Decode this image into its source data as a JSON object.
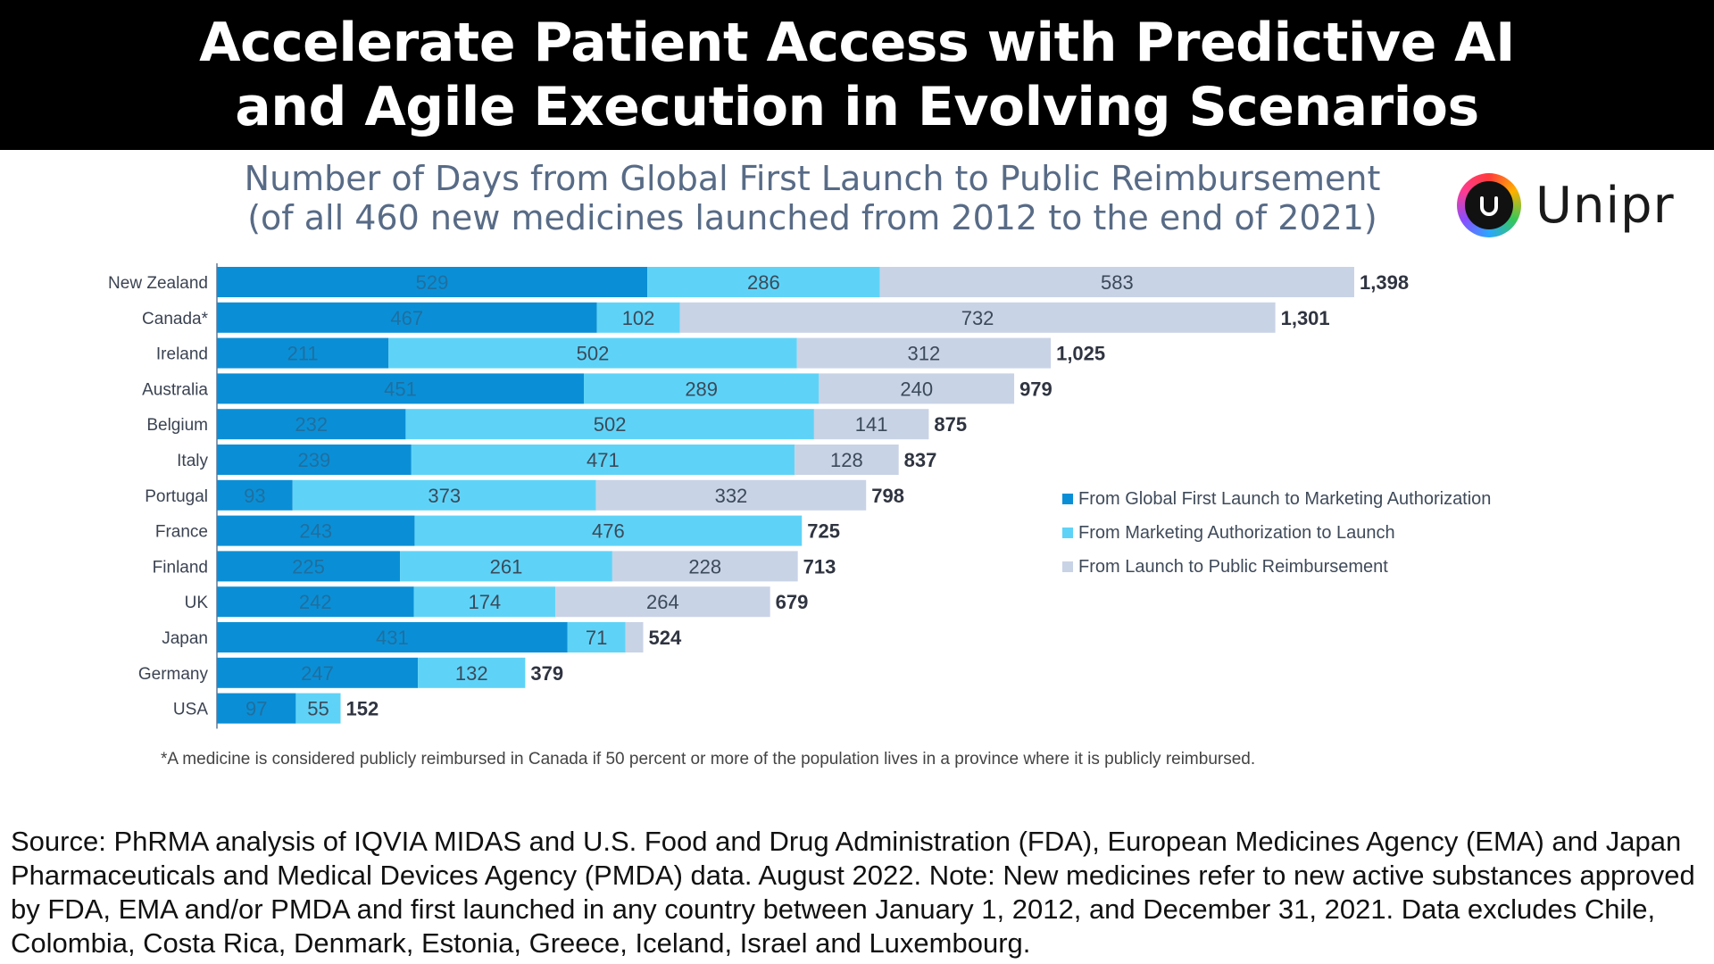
{
  "banner": {
    "line1": "Accelerate Patient Access with Predictive AI",
    "line2": "and Agile Execution in Evolving Scenarios"
  },
  "logo": {
    "text": "Unipr",
    "icon": "unipr-logo-icon"
  },
  "colors": {
    "series1": "#0a8fd6",
    "series2": "#5fd3f7",
    "series3": "#c9d3e6",
    "total_label": "#2f3440",
    "bar_label_dark": "#1f6fa0",
    "bar_label": "#3b4a5a"
  },
  "chart_data": {
    "type": "bar",
    "orientation": "horizontal",
    "stacked": true,
    "title": "Number of Days from Global First Launch to Public Reimbursement",
    "subtitle": "(of all 460 new medicines launched from 2012 to the end of 2021)",
    "categories": [
      "New Zealand",
      "Canada*",
      "Ireland",
      "Australia",
      "Belgium",
      "Italy",
      "Portugal",
      "France",
      "Finland",
      "UK",
      "Japan",
      "Germany",
      "USA"
    ],
    "series": [
      {
        "name": "From Global First Launch to Marketing Authorization",
        "values": [
          529,
          467,
          211,
          451,
          232,
          239,
          93,
          243,
          225,
          242,
          431,
          247,
          97
        ]
      },
      {
        "name": "From Marketing Authorization to Launch",
        "values": [
          286,
          102,
          502,
          289,
          502,
          471,
          373,
          476,
          261,
          174,
          71,
          132,
          55
        ]
      },
      {
        "name": "From Launch to Public Reimbursement",
        "values": [
          583,
          732,
          312,
          240,
          141,
          128,
          332,
          0,
          228,
          264,
          22,
          0,
          0
        ]
      }
    ],
    "totals": [
      "1,398",
      "1,301",
      "1,025",
      "979",
      "875",
      "837",
      "798",
      "725",
      "713",
      "679",
      "524",
      "379",
      "152"
    ],
    "segment_labels_hidden_for_zero": true,
    "xlim": [
      0,
      1398
    ],
    "legend_position": "right"
  },
  "footnote": "*A medicine is considered publicly reimbursed in Canada if 50 percent or more of the population lives in a province where it is publicly reimbursed.",
  "source": "Source: PhRMA analysis of IQVIA MIDAS and U.S. Food and Drug Administration (FDA), European Medicines Agency (EMA) and Japan Pharmaceuticals and Medical Devices Agency (PMDA) data. August 2022. Note: New medicines refer to new active substances approved by FDA, EMA and/or PMDA and first launched in any country between January 1, 2012, and December 31, 2021. Data excludes Chile, Colombia, Costa Rica, Denmark, Estonia, Greece, Iceland, Israel and Luxembourg."
}
